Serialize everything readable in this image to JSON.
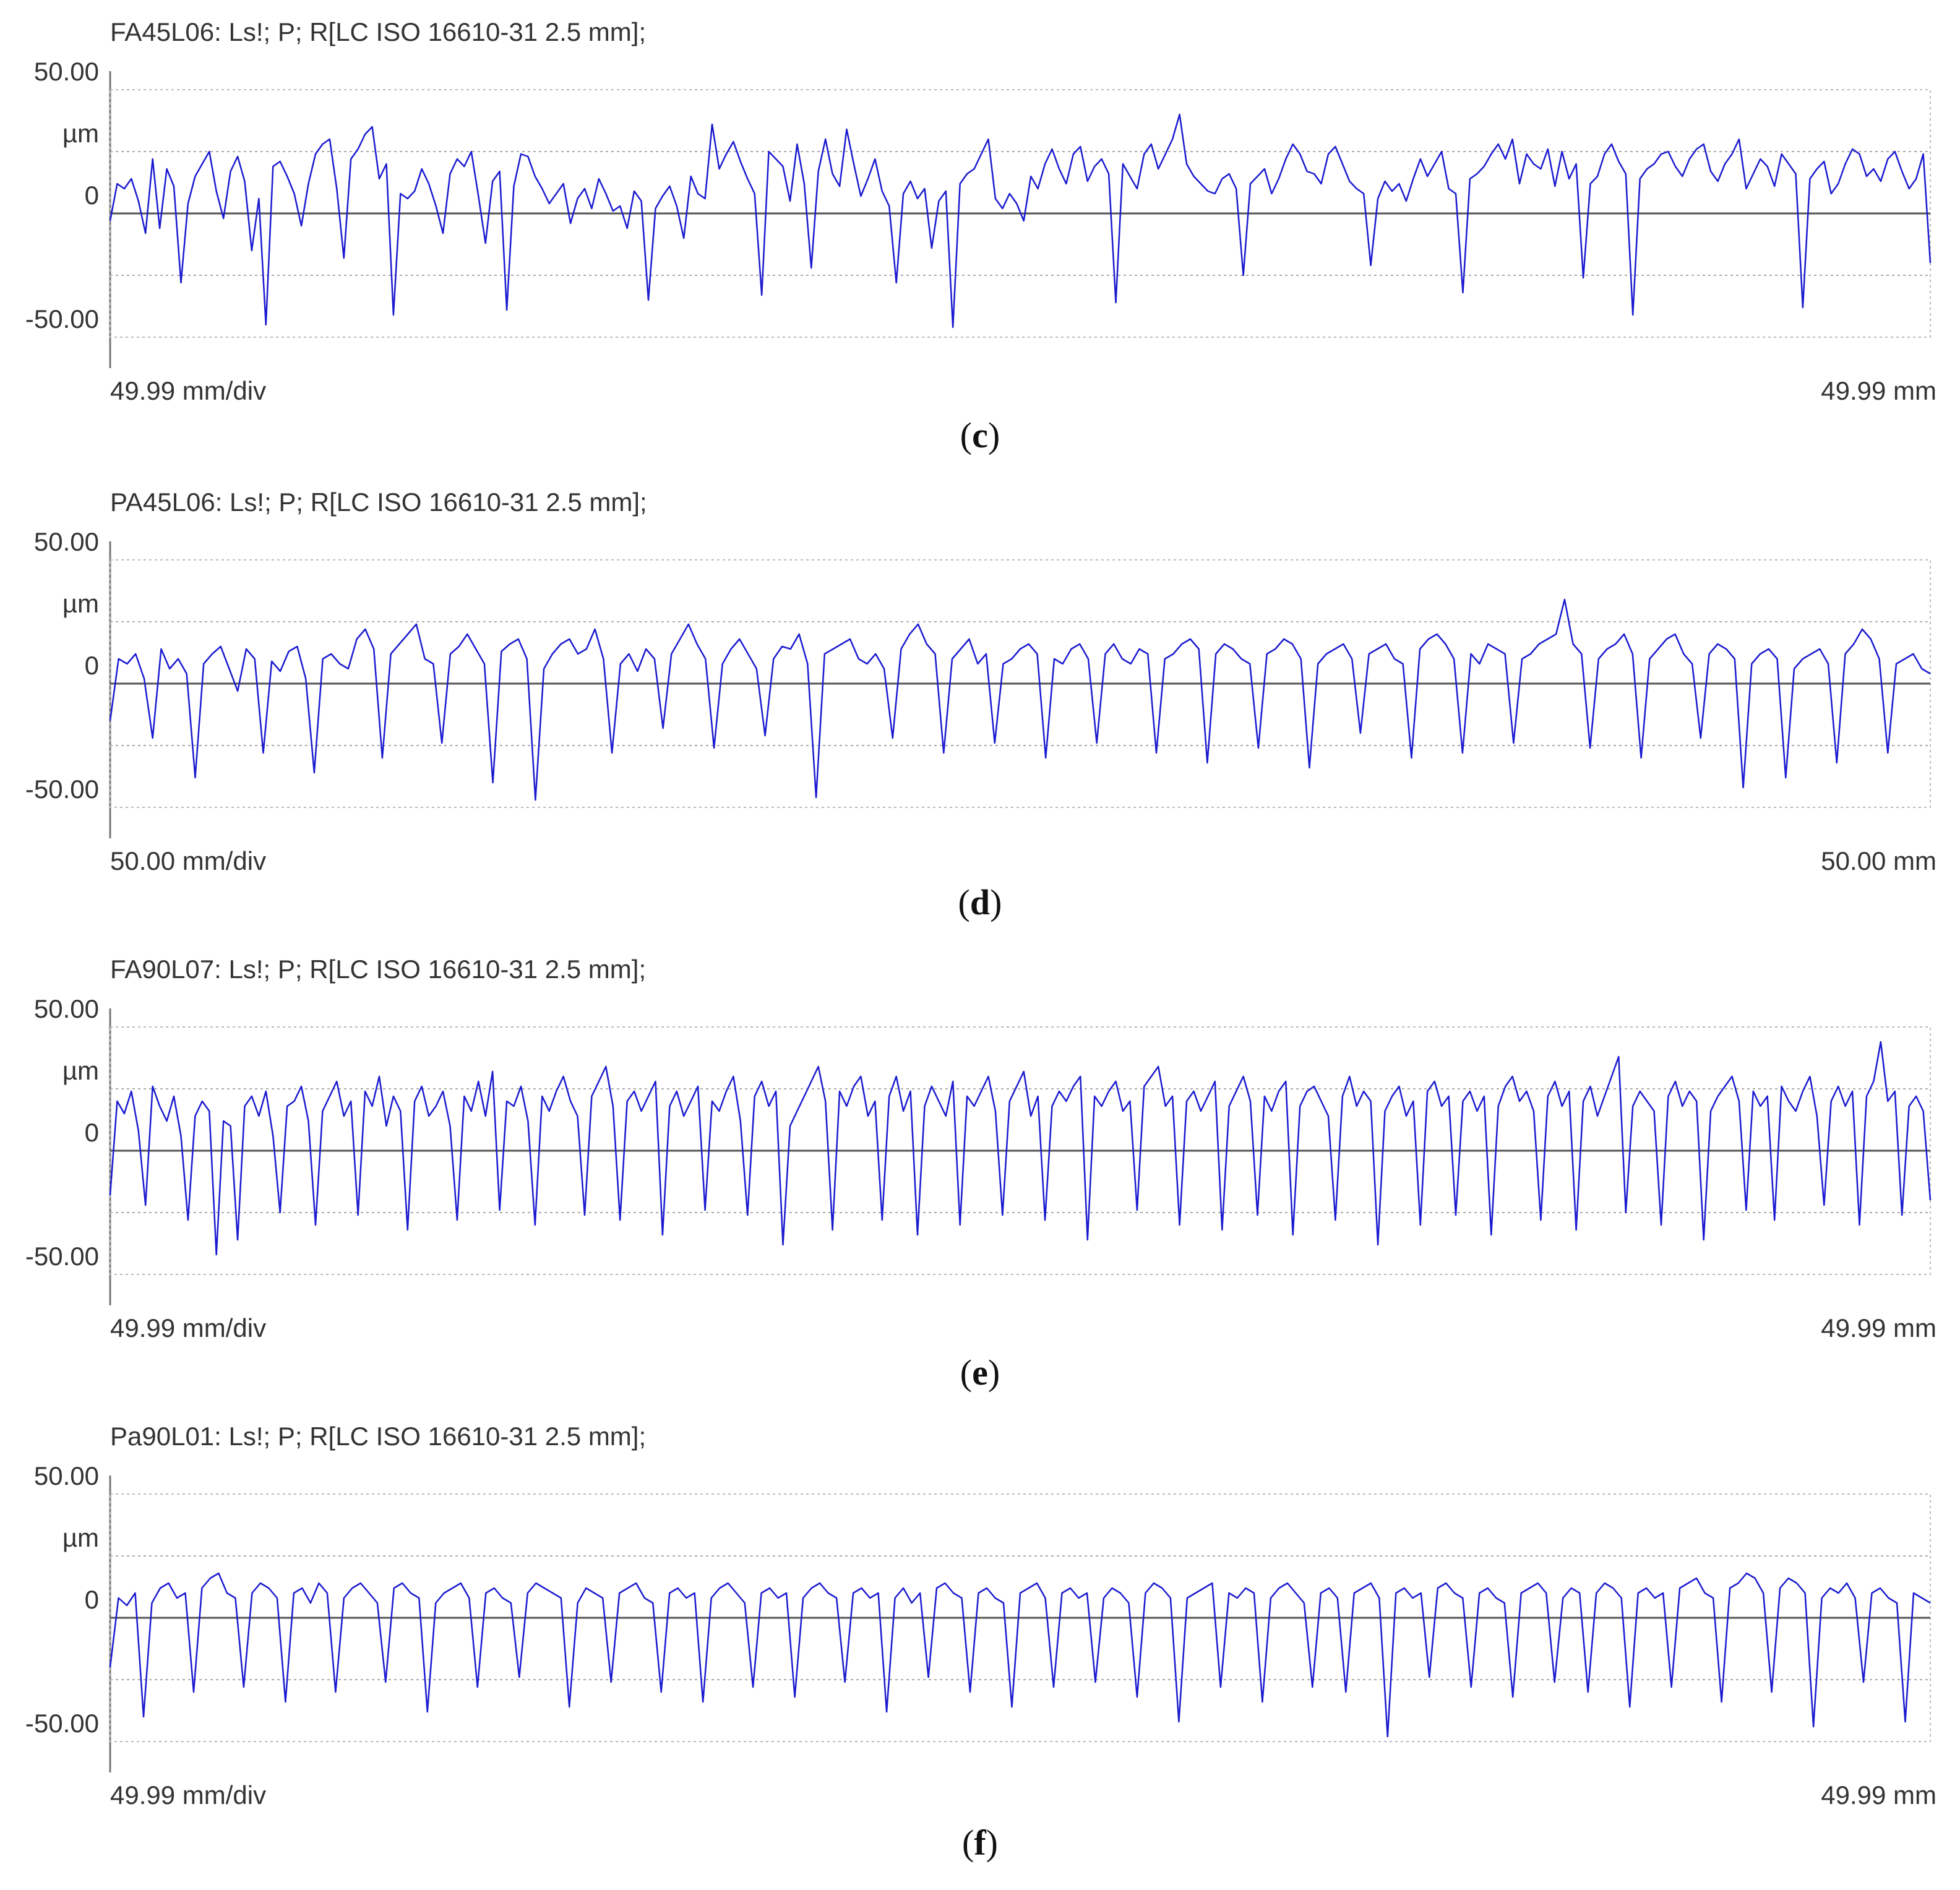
{
  "chart_data": [
    {
      "type": "line",
      "caption_letter": "c",
      "title": "FA45L06: Ls!; P; R[LC ISO 16610-31 2.5 mm];",
      "y_tick_labels": [
        "50.00",
        "µm",
        "0",
        "-50.00"
      ],
      "ylim": [
        -50,
        50
      ],
      "grid": true,
      "x_label_left": "49.99 mm/div",
      "x_label_right": "49.99 mm",
      "series": [
        {
          "values": [
            -3,
            12,
            10,
            14,
            5,
            -8,
            22,
            -6,
            18,
            11,
            -28,
            4,
            15,
            20,
            25,
            9,
            -2,
            17,
            23,
            13,
            -15,
            6,
            -45,
            19,
            21,
            15,
            8,
            -5,
            12,
            24,
            28,
            30,
            10,
            -18,
            22,
            26,
            32,
            35,
            14,
            20,
            -41,
            8,
            6,
            9,
            18,
            12,
            3,
            -8,
            16,
            22,
            19,
            25,
            7,
            -12,
            13,
            17,
            -39,
            11,
            24,
            23,
            15,
            10,
            4,
            8,
            12,
            -4,
            6,
            10,
            2,
            14,
            8,
            1,
            3,
            -6,
            9,
            5,
            -35,
            2,
            7,
            11,
            3,
            -10,
            15,
            8,
            6,
            36,
            18,
            24,
            29,
            21,
            14,
            8,
            -33,
            25,
            22,
            19,
            5,
            28,
            12,
            -22,
            17,
            30,
            16,
            11,
            34,
            20,
            7,
            14,
            22,
            9,
            3,
            -28,
            8,
            13,
            6,
            10,
            -14,
            5,
            9,
            -46,
            12,
            16,
            18,
            24,
            30,
            6,
            2,
            8,
            4,
            -3,
            15,
            10,
            20,
            26,
            18,
            12,
            24,
            27,
            13,
            19,
            22,
            16,
            -36,
            20,
            15,
            10,
            24,
            28,
            18,
            24,
            30,
            40,
            20,
            15,
            12,
            9,
            8,
            14,
            16,
            10,
            -25,
            12,
            15,
            18,
            8,
            14,
            22,
            28,
            24,
            17,
            16,
            12,
            24,
            27,
            20,
            13,
            10,
            8,
            -21,
            6,
            13,
            9,
            12,
            5,
            14,
            22,
            15,
            20,
            25,
            10,
            8,
            -32,
            14,
            16,
            19,
            24,
            28,
            22,
            30,
            12,
            24,
            20,
            18,
            26,
            11,
            25,
            14,
            20,
            -26,
            12,
            15,
            24,
            28,
            21,
            16,
            -41,
            14,
            18,
            20,
            24,
            25,
            19,
            15,
            22,
            26,
            28,
            17,
            13,
            20,
            24,
            30,
            10,
            16,
            22,
            19,
            11,
            24,
            20,
            16,
            -38,
            14,
            18,
            21,
            8,
            12,
            20,
            26,
            24,
            15,
            18,
            13,
            22,
            25,
            17,
            10,
            14,
            24,
            -20
          ]
        }
      ]
    },
    {
      "type": "line",
      "caption_letter": "d",
      "title": "PA45L06: Ls!; P; R[LC ISO 16610-31 2.5 mm];",
      "y_tick_labels": [
        "50.00",
        "µm",
        "0",
        "-50.00"
      ],
      "ylim": [
        -50,
        50
      ],
      "grid": true,
      "x_label_left": "50.00 mm/div",
      "x_label_right": "50.00 mm",
      "series": [
        {
          "values": [
            -15,
            10,
            8,
            12,
            2,
            -22,
            14,
            6,
            10,
            4,
            -38,
            8,
            12,
            15,
            6,
            -3,
            14,
            10,
            -28,
            9,
            5,
            13,
            15,
            2,
            -36,
            10,
            12,
            8,
            6,
            18,
            22,
            14,
            -30,
            12,
            16,
            20,
            24,
            10,
            8,
            -24,
            12,
            15,
            20,
            14,
            8,
            -40,
            13,
            16,
            18,
            10,
            -47,
            6,
            12,
            16,
            18,
            12,
            14,
            22,
            10,
            -28,
            8,
            12,
            5,
            14,
            10,
            -18,
            12,
            18,
            24,
            16,
            10,
            -26,
            8,
            14,
            18,
            12,
            6,
            -21,
            10,
            15,
            14,
            20,
            8,
            -46,
            12,
            14,
            16,
            18,
            10,
            8,
            12,
            6,
            -22,
            14,
            20,
            24,
            16,
            12,
            -28,
            10,
            14,
            18,
            8,
            12,
            -24,
            8,
            10,
            14,
            16,
            12,
            -30,
            10,
            8,
            14,
            16,
            10,
            -24,
            12,
            16,
            10,
            8,
            14,
            12,
            -28,
            10,
            12,
            16,
            18,
            14,
            -32,
            12,
            16,
            14,
            10,
            8,
            -26,
            12,
            14,
            18,
            16,
            10,
            -34,
            8,
            12,
            14,
            16,
            10,
            -20,
            12,
            14,
            16,
            10,
            8,
            -30,
            14,
            18,
            20,
            16,
            10,
            -28,
            12,
            8,
            16,
            14,
            12,
            -24,
            10,
            12,
            16,
            18,
            20,
            34,
            16,
            12,
            -26,
            10,
            14,
            16,
            20,
            12,
            -30,
            10,
            14,
            18,
            20,
            12,
            8,
            -22,
            12,
            16,
            14,
            10,
            -42,
            8,
            12,
            14,
            10,
            -38,
            6,
            10,
            12,
            14,
            8,
            -32,
            12,
            16,
            22,
            18,
            10,
            -28,
            8,
            10,
            12,
            6,
            4
          ]
        }
      ]
    },
    {
      "type": "line",
      "caption_letter": "e",
      "title": "FA90L07: Ls!; P; R[LC ISO 16610-31 2.5 mm];",
      "y_tick_labels": [
        "50.00",
        "µm",
        "0",
        "-50.00"
      ],
      "ylim": [
        -50,
        50
      ],
      "grid": true,
      "x_label_left": "49.99 mm/div",
      "x_label_right": "49.99 mm",
      "series": [
        {
          "values": [
            -18,
            20,
            15,
            24,
            8,
            -22,
            26,
            18,
            12,
            22,
            6,
            -28,
            14,
            20,
            16,
            -42,
            12,
            10,
            -36,
            18,
            22,
            14,
            24,
            6,
            -25,
            18,
            20,
            26,
            12,
            -30,
            16,
            22,
            28,
            14,
            20,
            -26,
            24,
            18,
            30,
            10,
            22,
            16,
            -32,
            20,
            26,
            14,
            18,
            24,
            10,
            -28,
            22,
            16,
            28,
            14,
            32,
            -24,
            20,
            18,
            26,
            12,
            -30,
            22,
            16,
            24,
            30,
            20,
            14,
            -26,
            22,
            28,
            34,
            18,
            -28,
            20,
            24,
            16,
            22,
            28,
            -34,
            18,
            24,
            14,
            20,
            26,
            -24,
            20,
            16,
            24,
            30,
            12,
            -26,
            22,
            28,
            18,
            24,
            -38,
            10,
            16,
            22,
            28,
            34,
            20,
            -32,
            24,
            18,
            26,
            30,
            14,
            20,
            -28,
            22,
            30,
            16,
            24,
            -34,
            18,
            26,
            20,
            14,
            28,
            -30,
            22,
            18,
            24,
            30,
            16,
            -26,
            20,
            26,
            32,
            14,
            22,
            -28,
            18,
            24,
            20,
            26,
            30,
            -36,
            22,
            18,
            24,
            28,
            16,
            20,
            -24,
            26,
            30,
            34,
            18,
            22,
            -30,
            20,
            24,
            16,
            22,
            28,
            -32,
            18,
            24,
            30,
            20,
            -26,
            22,
            16,
            24,
            28,
            -34,
            18,
            24,
            26,
            20,
            14,
            -28,
            22,
            30,
            18,
            24,
            20,
            -38,
            16,
            22,
            26,
            14,
            20,
            -30,
            24,
            28,
            18,
            22,
            -26,
            20,
            24,
            16,
            22,
            -34,
            18,
            26,
            30,
            20,
            24,
            16,
            -28,
            22,
            28,
            18,
            24,
            -32,
            20,
            26,
            14,
            22,
            30,
            38,
            -25,
            18,
            24,
            20,
            16,
            -30,
            22,
            28,
            18,
            24,
            20,
            -36,
            16,
            22,
            26,
            30,
            20,
            -24,
            24,
            18,
            22,
            -28,
            26,
            20,
            16,
            24,
            30,
            14,
            -22,
            20,
            26,
            18,
            24,
            -30,
            22,
            28,
            44,
            20,
            24,
            -26,
            18,
            22,
            16,
            -20
          ]
        }
      ]
    },
    {
      "type": "line",
      "caption_letter": "f",
      "title": "Pa90L01: Ls!; P; R[LC ISO 16610-31 2.5 mm];",
      "y_tick_labels": [
        "50.00",
        "µm",
        "0",
        "-50.00"
      ],
      "ylim": [
        -50,
        50
      ],
      "grid": true,
      "x_label_left": "49.99 mm/div",
      "x_label_right": "49.99 mm",
      "series": [
        {
          "values": [
            -20,
            8,
            5,
            10,
            -40,
            6,
            12,
            14,
            8,
            10,
            -30,
            12,
            16,
            18,
            10,
            8,
            -28,
            10,
            14,
            12,
            8,
            -34,
            10,
            12,
            6,
            14,
            10,
            -30,
            8,
            12,
            14,
            10,
            6,
            -26,
            12,
            14,
            10,
            8,
            -38,
            6,
            10,
            12,
            14,
            8,
            -28,
            10,
            12,
            8,
            6,
            -24,
            10,
            14,
            12,
            10,
            8,
            -36,
            6,
            12,
            10,
            8,
            -26,
            10,
            12,
            14,
            8,
            6,
            -30,
            10,
            12,
            8,
            10,
            -34,
            8,
            12,
            14,
            10,
            6,
            -28,
            10,
            12,
            8,
            10,
            -32,
            8,
            12,
            14,
            10,
            8,
            -26,
            10,
            12,
            8,
            10,
            -38,
            8,
            12,
            6,
            10,
            -24,
            12,
            14,
            10,
            8,
            -30,
            10,
            12,
            8,
            6,
            -36,
            10,
            12,
            14,
            8,
            -28,
            10,
            12,
            8,
            10,
            -26,
            8,
            12,
            10,
            6,
            -32,
            10,
            14,
            12,
            8,
            -42,
            8,
            10,
            12,
            14,
            -28,
            10,
            8,
            12,
            10,
            -34,
            8,
            12,
            14,
            10,
            6,
            -28,
            10,
            12,
            8,
            -30,
            10,
            12,
            14,
            8,
            -48,
            10,
            12,
            8,
            10,
            -24,
            12,
            14,
            10,
            8,
            -28,
            10,
            12,
            8,
            6,
            -32,
            10,
            12,
            14,
            10,
            -26,
            8,
            12,
            10,
            -30,
            10,
            14,
            12,
            8,
            -36,
            10,
            12,
            8,
            10,
            -28,
            12,
            14,
            16,
            10,
            8,
            -34,
            12,
            14,
            18,
            16,
            10,
            -30,
            12,
            16,
            14,
            10,
            -44,
            8,
            12,
            10,
            14,
            8,
            -26,
            10,
            12,
            8,
            6,
            -42,
            10,
            8,
            6
          ]
        }
      ]
    }
  ],
  "colors": {
    "line": "#1a1ad0",
    "zero": "#555555",
    "grid": "#aaaaaa",
    "frame": "#bbbbbb"
  }
}
